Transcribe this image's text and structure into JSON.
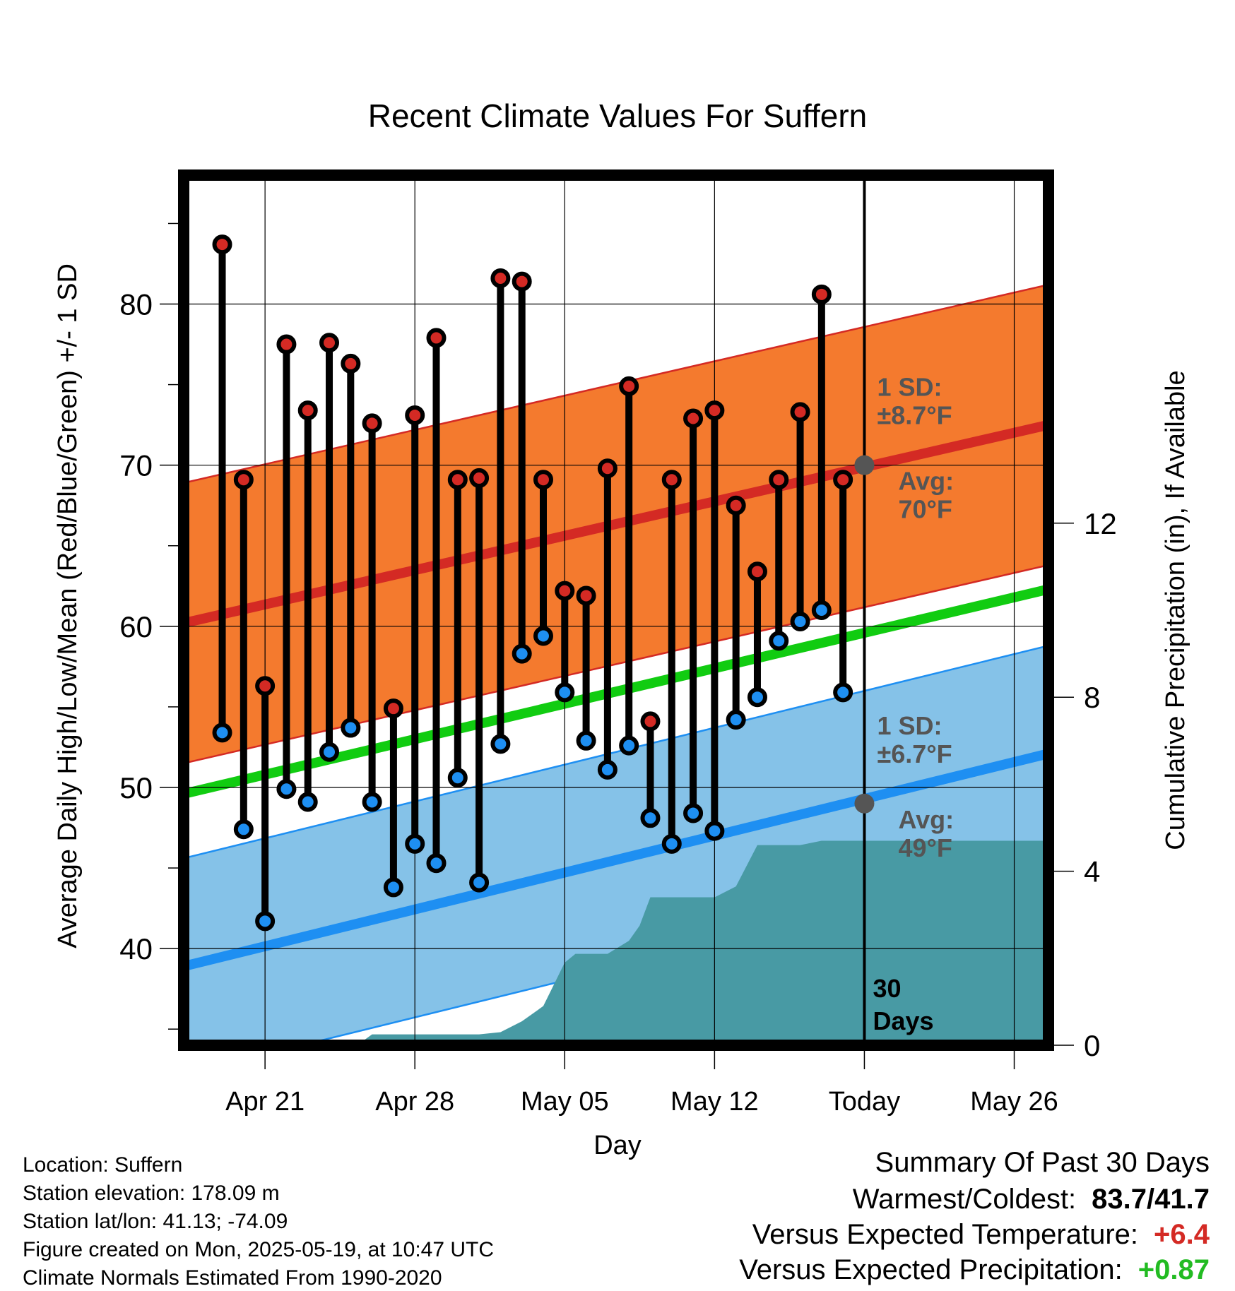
{
  "chart_data": {
    "type": "line",
    "title": "Recent Climate Values For Suffern",
    "xlabel": "Day",
    "ylabel": "Average Daily High/Low/Mean (Red/Blue/Green) +/- 1 SD",
    "y2label": "Cumulative Precipitation (in), If Available",
    "x_ticks": [
      "Apr 21",
      "Apr 28",
      "May 05",
      "May 12",
      "Today",
      "May 26"
    ],
    "x_tick_days": [
      21,
      28,
      35,
      42,
      49,
      56
    ],
    "ylim": [
      34,
      88
    ],
    "yticks": [
      40,
      50,
      60,
      70,
      80
    ],
    "y2lim": [
      0,
      20
    ],
    "y2ticks": [
      0,
      4,
      8,
      12
    ],
    "xlim": [
      17.2,
      57.6
    ],
    "day_axis_note": "day numbers counted from Apr 0 (Apr 21 = 21, May 05 = 35)",
    "grid": true,
    "today_day": 49,
    "period_label": "30 Days",
    "high_band": {
      "color": "#f47a2e",
      "edge_color": "#d42a24",
      "mean_start": 60.2,
      "mean_end": 72.5,
      "sd": 8.7,
      "sd_label": "1 SD:",
      "sd_value": "±8.7°F",
      "avg_label": "Avg:",
      "avg_value": "70°F",
      "today_avg": 70
    },
    "low_band": {
      "color": "#85c2e8",
      "edge_color": "#1e8ff2",
      "mean_start": 38.9,
      "mean_end": 52.1,
      "sd": 6.7,
      "sd_label": "1 SD:",
      "sd_value": "±6.7°F",
      "avg_label": "Avg:",
      "avg_value": "49°F",
      "today_avg": 49
    },
    "mean_line": {
      "color": "#11cc11",
      "start": 49.6,
      "end": 62.3
    },
    "observations": {
      "days": [
        19,
        20,
        21,
        22,
        23,
        24,
        25,
        26,
        27,
        28,
        29,
        30,
        31,
        32,
        33,
        34,
        35,
        36,
        37,
        38,
        39,
        40,
        41,
        42,
        43,
        44,
        45,
        46,
        47,
        48
      ],
      "highs": [
        83.7,
        69.1,
        56.3,
        77.5,
        73.4,
        77.6,
        76.3,
        72.6,
        54.9,
        73.1,
        77.9,
        69.1,
        69.2,
        81.6,
        81.4,
        69.1,
        62.2,
        61.9,
        69.8,
        74.9,
        54.1,
        69.1,
        72.9,
        73.4,
        67.5,
        63.4,
        69.1,
        73.3,
        80.6,
        69.1
      ],
      "lows": [
        53.4,
        47.4,
        41.7,
        49.9,
        49.1,
        52.2,
        53.7,
        49.1,
        43.8,
        46.5,
        45.3,
        50.6,
        44.1,
        52.7,
        58.3,
        59.4,
        55.9,
        52.9,
        51.1,
        52.6,
        48.1,
        46.5,
        48.4,
        47.3,
        54.2,
        55.6,
        59.1,
        60.3,
        61.0,
        55.9
      ],
      "high_marker_color": "#d42a24",
      "low_marker_color": "#1e8ff2"
    },
    "precipitation": {
      "color": "#489aa4",
      "days": [
        17.2,
        22.0,
        22.1,
        24.8,
        25.3,
        26.0,
        29.0,
        30.0,
        31.0,
        32.0,
        33.0,
        34.0,
        35.0,
        35.5,
        36.0,
        37.0,
        38.0,
        38.5,
        39.0,
        39.5,
        40.0,
        41.0,
        42.0,
        43.0,
        44.0,
        45.0,
        46.0,
        47.0,
        48.0,
        49.0,
        57.6
      ],
      "cumulative": [
        0,
        0,
        0,
        0,
        0,
        0.25,
        0.25,
        0.25,
        0.25,
        0.3,
        0.55,
        0.9,
        1.9,
        2.1,
        2.1,
        2.1,
        2.4,
        2.75,
        3.4,
        3.4,
        3.4,
        3.4,
        3.4,
        3.65,
        4.6,
        4.6,
        4.6,
        4.7,
        4.7,
        4.7,
        4.7
      ]
    }
  },
  "footer": {
    "location": "Location: Suffern",
    "elevation": "Station elevation: 178.09 m",
    "latlon": "Station lat/lon: 41.13; -74.09",
    "created": "Figure created on Mon, 2025-05-19, at 10:47 UTC",
    "normals": "Climate Normals Estimated From 1990-2020"
  },
  "summary": {
    "title": "Summary Of Past 30 Days",
    "warm_cold_label": "Warmest/Coldest:",
    "warm_cold_value": "83.7/41.7",
    "temp_label": "Versus Expected Temperature:",
    "temp_value": "+6.4",
    "temp_color": "#d42a24",
    "precip_label": "Versus Expected Precipitation:",
    "precip_value": "+0.87",
    "precip_color": "#22bb22"
  }
}
